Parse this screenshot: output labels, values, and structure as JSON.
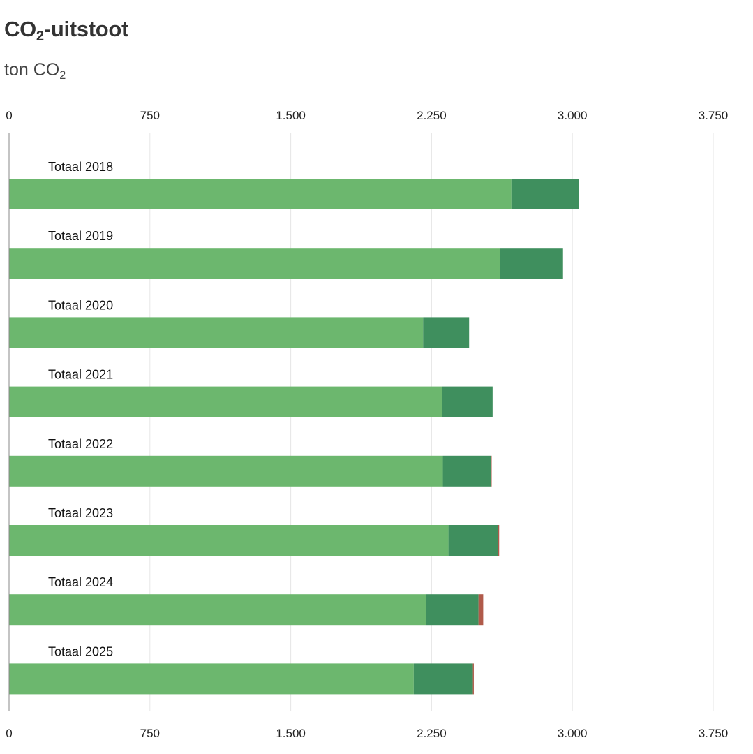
{
  "header": {
    "title_prefix": "CO",
    "title_sub": "2",
    "title_suffix": "-uitstoot",
    "subtitle_prefix": "ton CO",
    "subtitle_sub": "2"
  },
  "chart_data": {
    "type": "bar",
    "orientation": "horizontal",
    "stacked": true,
    "categories": [
      "Totaal 2018",
      "Totaal 2019",
      "Totaal 2020",
      "Totaal 2021",
      "Totaal 2022",
      "Totaal 2023",
      "Totaal 2024",
      "Totaal 2025"
    ],
    "series": [
      {
        "color": "#6cb76e",
        "values": [
          2675,
          2615,
          2205,
          2305,
          2310,
          2340,
          2220,
          2155
        ]
      },
      {
        "color": "#3f8f5e",
        "values": [
          360,
          335,
          245,
          270,
          255,
          265,
          280,
          315
        ]
      },
      {
        "color": "#b05a4a",
        "values": [
          0,
          0,
          0,
          0,
          5,
          5,
          25,
          5
        ]
      }
    ],
    "xlim": [
      0,
      3750
    ],
    "ticks": [
      0,
      750,
      1500,
      2250,
      3000,
      3750
    ],
    "tick_labels": [
      "0",
      "750",
      "1.500",
      "2.250",
      "3.000",
      "3.750"
    ],
    "grid": true,
    "axis_labels_top_and_bottom": true
  }
}
